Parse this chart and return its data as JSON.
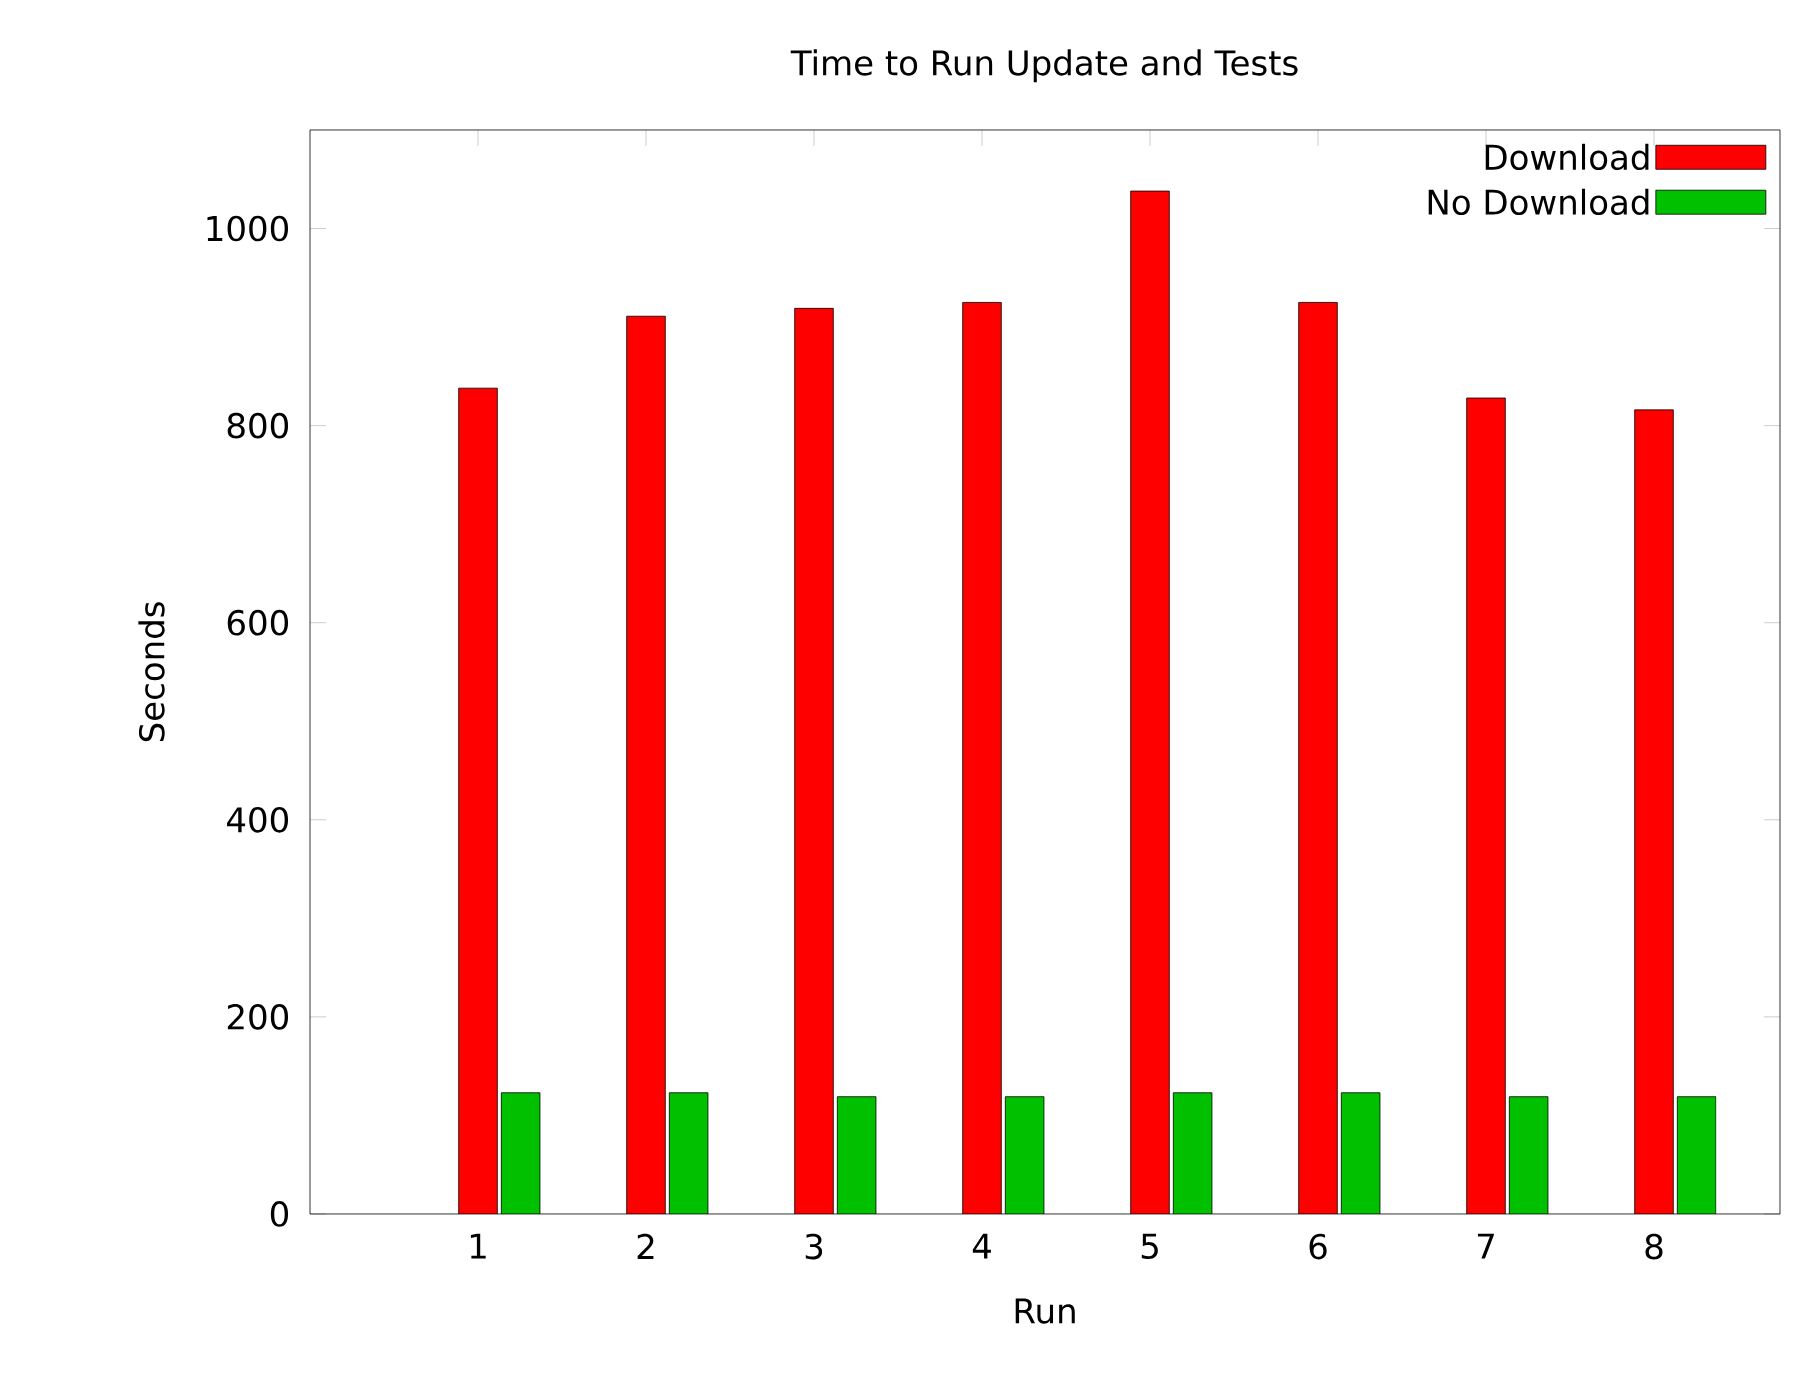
{
  "chart_data": {
    "type": "bar",
    "title": "Time to Run Update and Tests",
    "xlabel": "Run",
    "ylabel": "Seconds",
    "x": [
      1,
      2,
      3,
      4,
      5,
      6,
      7,
      8
    ],
    "series": [
      {
        "name": "Download",
        "color": "#ff0000",
        "values": [
          838,
          911,
          919,
          925,
          1038,
          925,
          828,
          816
        ]
      },
      {
        "name": "No Download",
        "color": "#00c000",
        "values": [
          123,
          123,
          119,
          119,
          123,
          123,
          119,
          119
        ]
      }
    ],
    "xlim": [
      0,
      8.75
    ],
    "xticks": [
      1,
      2,
      3,
      4,
      5,
      6,
      7,
      8
    ],
    "ylim": [
      0,
      1100
    ],
    "yticks": [
      0,
      200,
      400,
      600,
      800,
      1000
    ],
    "grid": false,
    "legend": "top right"
  }
}
